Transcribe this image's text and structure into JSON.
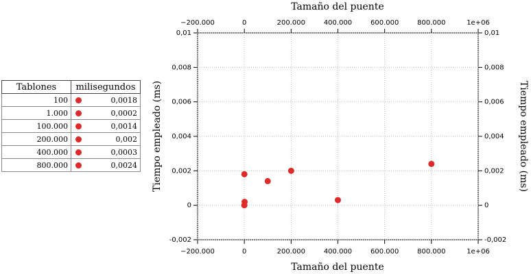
{
  "table": {
    "header": [
      "Tablones",
      "milisegundos"
    ],
    "rows": [
      [
        "100",
        "0,0018"
      ],
      [
        "1.000",
        "0,0002"
      ],
      [
        "100.000",
        "0,0014"
      ],
      [
        "200.000",
        "0,002"
      ],
      [
        "400.000",
        "0,0003"
      ],
      [
        "800.000",
        "0,0024"
      ]
    ],
    "marker_color": "#dd2a2a"
  },
  "chart_data": {
    "type": "scatter",
    "xlabel": "Tamaño del puente",
    "ylabel": "Tiempo empleado (ms)",
    "x": [
      100,
      1000,
      100000,
      200000,
      400000,
      800000,
      0
    ],
    "y": [
      0.0018,
      0.0002,
      0.0014,
      0.002,
      0.0003,
      0.0024,
      0
    ],
    "color": "#dd2a2a",
    "xlim": [
      -200000,
      1000000
    ],
    "xticks": [
      {
        "value": -200000,
        "label": "−200.000"
      },
      0,
      {
        "value": 200000,
        "label": "200.000"
      },
      {
        "value": 400000,
        "label": "400.000"
      },
      {
        "value": 600000,
        "label": "600.000"
      },
      {
        "value": 800000,
        "label": "800.000"
      },
      {
        "value": 1000000,
        "label": "1e+06"
      }
    ],
    "ylim": [
      -0.002,
      0.01
    ],
    "yticks": [
      {
        "value": -0.002,
        "label": "-0,002"
      },
      0,
      {
        "value": 0.002,
        "label": "0,002"
      },
      {
        "value": 0.004,
        "label": "0,004"
      },
      {
        "value": 0.006,
        "label": "0,006"
      },
      {
        "value": 0.008,
        "label": "0,008"
      },
      {
        "value": 0.01,
        "label": "0,01"
      }
    ],
    "grid": true
  }
}
